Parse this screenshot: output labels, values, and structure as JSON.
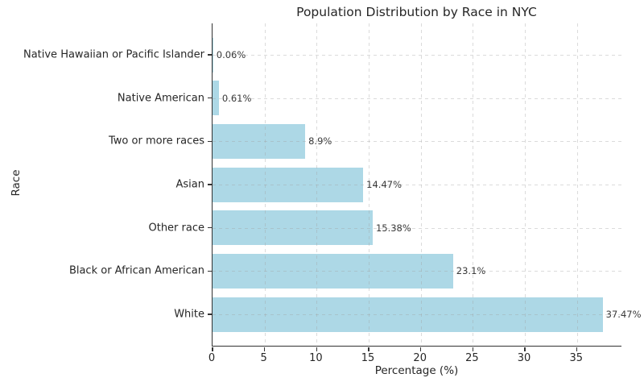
{
  "chart_data": {
    "type": "bar",
    "orientation": "horizontal",
    "title": "Population Distribution by Race in NYC",
    "xlabel": "Percentage (%)",
    "ylabel": "Race",
    "categories": [
      "Native Hawaiian or Pacific Islander",
      "Native American",
      "Two or more races",
      "Asian",
      "Other race",
      "Black or African American",
      "White"
    ],
    "values": [
      0.06,
      0.61,
      8.9,
      14.47,
      15.38,
      23.1,
      37.47
    ],
    "value_labels": [
      "0.06%",
      "0.61%",
      "8.9%",
      "14.47%",
      "15.38%",
      "23.1%",
      "37.47%"
    ],
    "xticks": [
      0,
      5,
      10,
      15,
      20,
      25,
      30,
      35
    ],
    "xtick_labels": [
      "0",
      "5",
      "10",
      "15",
      "20",
      "25",
      "30",
      "35"
    ],
    "xlim": [
      0,
      39.35
    ],
    "grid": true,
    "grid_style": "dashed",
    "legend": "none",
    "bar_color": "#ADD8E6",
    "background_color": "#ffffff",
    "text_color": "#262626"
  }
}
